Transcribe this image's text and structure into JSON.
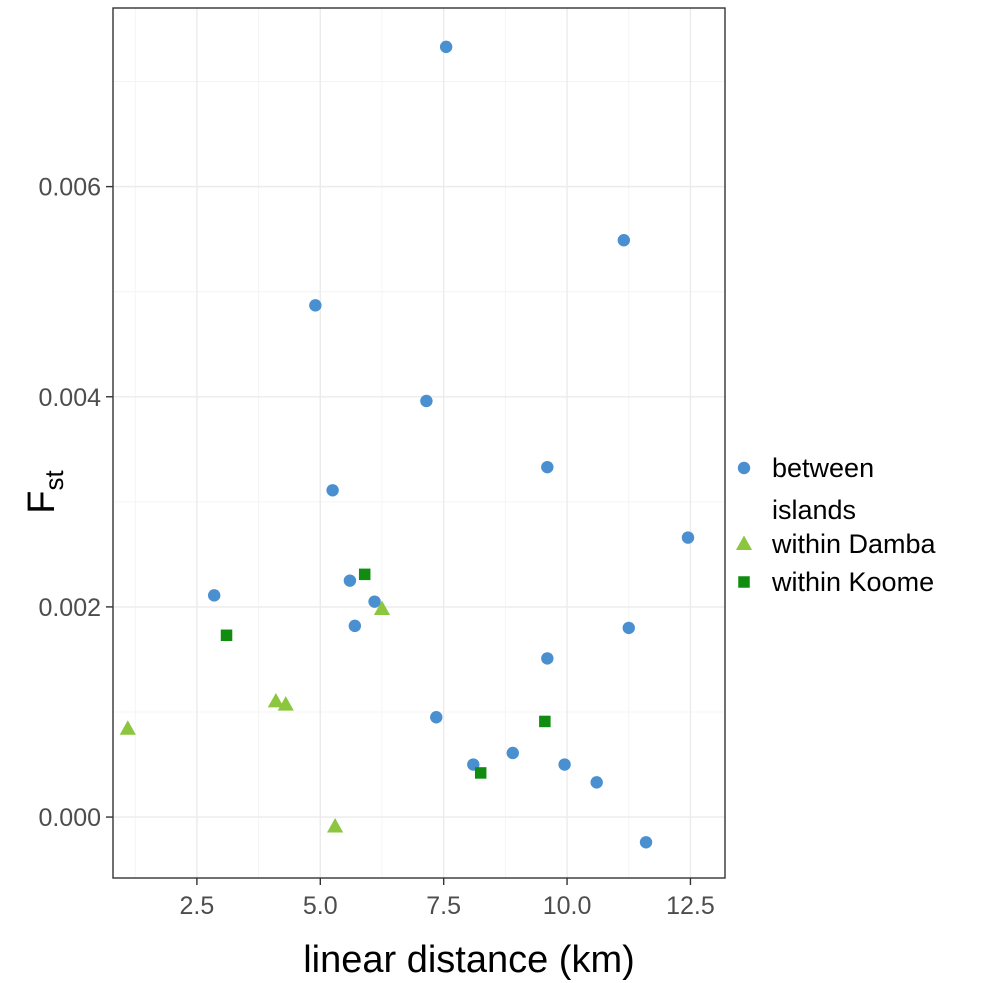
{
  "chart_data": {
    "type": "scatter",
    "xlabel": "linear distance (km)",
    "ylabel_main": "F",
    "ylabel_sub": "st",
    "xlim": [
      0.8,
      13.2
    ],
    "ylim": [
      -0.00058,
      0.0077
    ],
    "x_ticks": [
      2.5,
      5.0,
      7.5,
      10.0,
      12.5
    ],
    "x_tick_labels": [
      "2.5",
      "5.0",
      "7.5",
      "10.0",
      "12.5"
    ],
    "y_ticks": [
      0.0,
      0.002,
      0.004,
      0.006
    ],
    "y_tick_labels": [
      "0.000",
      "0.002",
      "0.004",
      "0.006"
    ],
    "grid": true,
    "legend_position": "right",
    "series": [
      {
        "name_lines": [
          "between",
          "islands"
        ],
        "color": "#4a8fd0",
        "marker": "circle",
        "points": [
          [
            7.55,
            0.00733
          ],
          [
            11.15,
            0.00549
          ],
          [
            4.9,
            0.00487
          ],
          [
            7.15,
            0.00396
          ],
          [
            9.6,
            0.00333
          ],
          [
            5.25,
            0.00311
          ],
          [
            12.45,
            0.00266
          ],
          [
            5.6,
            0.00225
          ],
          [
            2.85,
            0.00211
          ],
          [
            6.1,
            0.00205
          ],
          [
            5.7,
            0.00182
          ],
          [
            11.25,
            0.0018
          ],
          [
            9.6,
            0.00151
          ],
          [
            7.35,
            0.00095
          ],
          [
            8.9,
            0.00061
          ],
          [
            8.1,
            0.0005
          ],
          [
            9.95,
            0.0005
          ],
          [
            10.6,
            0.00033
          ],
          [
            11.6,
            -0.00024
          ]
        ]
      },
      {
        "name_lines": [
          "within Damba"
        ],
        "color": "#8cc63f",
        "marker": "triangle",
        "points": [
          [
            1.1,
            0.00084
          ],
          [
            4.1,
            0.0011
          ],
          [
            4.3,
            0.00107
          ],
          [
            6.25,
            0.00198
          ],
          [
            5.3,
            -9e-05
          ]
        ]
      },
      {
        "name_lines": [
          "within Koome"
        ],
        "color": "#108c10",
        "marker": "square",
        "points": [
          [
            5.9,
            0.00231
          ],
          [
            3.1,
            0.00173
          ],
          [
            9.55,
            0.00091
          ],
          [
            8.25,
            0.00042
          ]
        ]
      }
    ]
  }
}
